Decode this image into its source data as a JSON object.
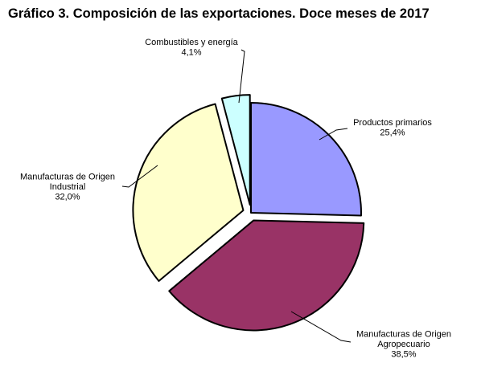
{
  "chart_data": {
    "type": "pie",
    "title": "Gráfico 3. Composición de las exportaciones. Doce meses de 2017",
    "slices": [
      {
        "label_lines": [
          "Productos primarios"
        ],
        "value_label": "25,4%",
        "value": 25.4,
        "color": "#9999ff",
        "exploded": false
      },
      {
        "label_lines": [
          "Manufacturas de Origen",
          "Agropecuario"
        ],
        "value_label": "38,5%",
        "value": 38.5,
        "color": "#993366",
        "exploded": true
      },
      {
        "label_lines": [
          "Manufacturas de Origen",
          "Industrial"
        ],
        "value_label": "32,0%",
        "value": 32.0,
        "color": "#ffffcc",
        "exploded": true
      },
      {
        "label_lines": [
          "Combustibles y energía"
        ],
        "value_label": "4,1%",
        "value": 4.1,
        "color": "#ccffff",
        "exploded": true
      }
    ]
  }
}
